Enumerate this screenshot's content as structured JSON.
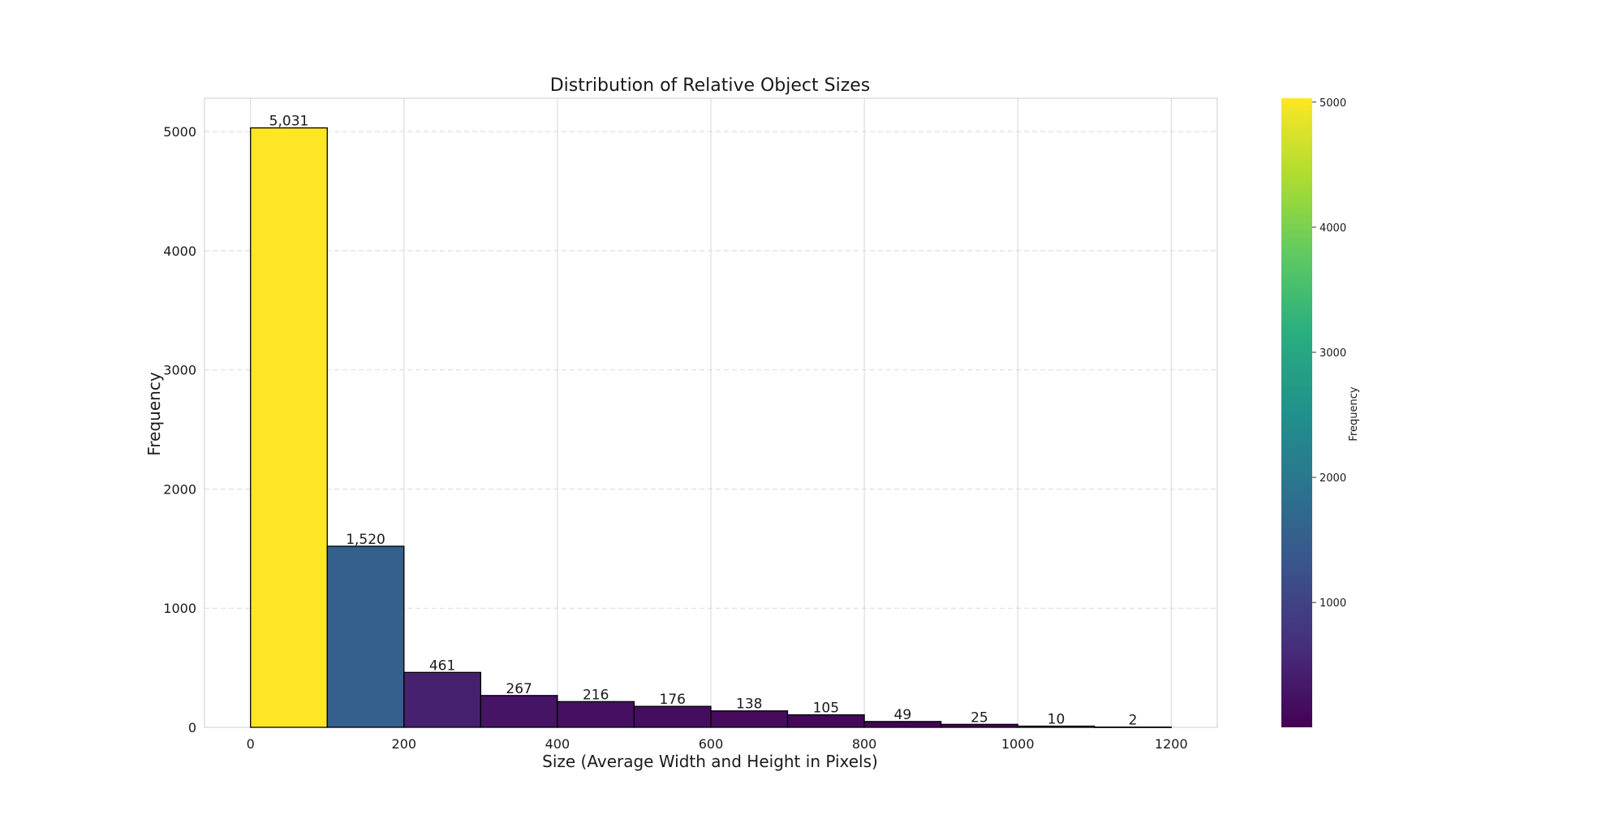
{
  "chart_data": {
    "type": "bar",
    "title": "Distribution of Relative Object Sizes",
    "xlabel": "Size (Average Width and Height in Pixels)",
    "ylabel": "Frequency",
    "bin_edges": [
      0,
      100,
      200,
      300,
      400,
      500,
      600,
      700,
      800,
      900,
      1000,
      1100,
      1200
    ],
    "values": [
      5031,
      1520,
      461,
      267,
      216,
      176,
      138,
      105,
      49,
      25,
      10,
      2
    ],
    "value_labels": [
      "5,031",
      "1,520",
      "461",
      "267",
      "216",
      "176",
      "138",
      "105",
      "49",
      "25",
      "10",
      "2"
    ],
    "xlim": [
      -60,
      1260
    ],
    "ylim": [
      0,
      5280
    ],
    "xticks": [
      0,
      200,
      400,
      600,
      800,
      1000,
      1200
    ],
    "xtick_labels": [
      "0",
      "200",
      "400",
      "600",
      "800",
      "1000",
      "1200"
    ],
    "yticks": [
      0,
      1000,
      2000,
      3000,
      4000,
      5000
    ],
    "ytick_labels": [
      "0",
      "1000",
      "2000",
      "3000",
      "4000",
      "5000"
    ],
    "grid": true,
    "bar_edge_color": "#000000",
    "colormap": "viridis",
    "colorbar": {
      "label": "Frequency",
      "min": 2,
      "max": 5031,
      "ticks": [
        1000,
        2000,
        3000,
        4000,
        5000
      ],
      "tick_labels": [
        "1000",
        "2000",
        "3000",
        "4000",
        "5000"
      ]
    }
  }
}
